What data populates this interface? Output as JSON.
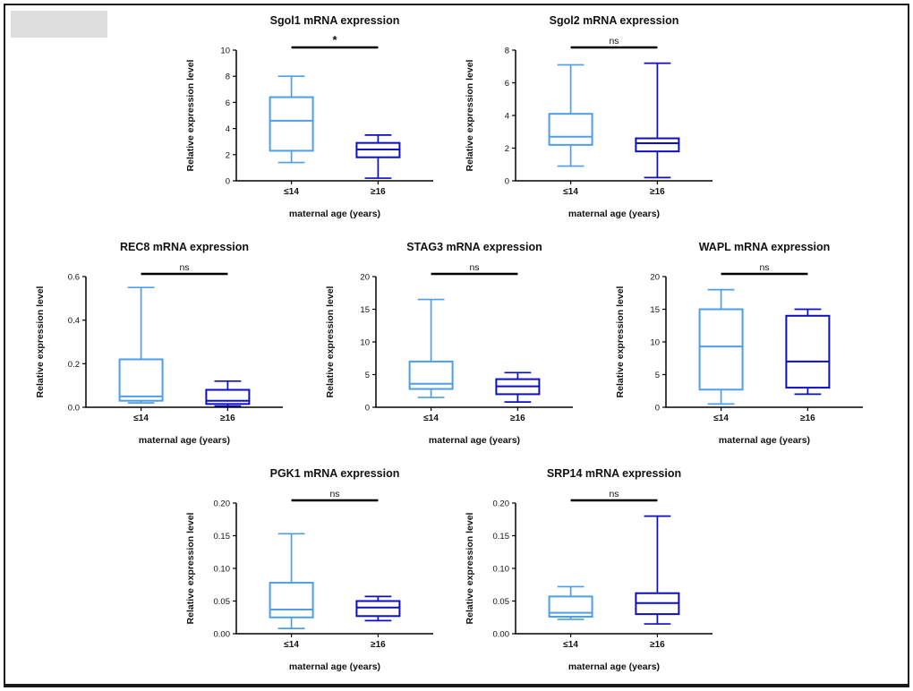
{
  "figure": {
    "groups": [
      {
        "label": "≤14",
        "color": "#4D9EEB"
      },
      {
        "label": "≥16",
        "color": "#0E0EC2"
      }
    ],
    "axis_color": "#000000",
    "significance_color": "#000000"
  },
  "chart_data": [
    {
      "type": "box",
      "title": "Sgol1 mRNA expression",
      "ylabel": "Relative expression level",
      "xlabel": "maternal age (years)",
      "significance": "*",
      "ylim": [
        0,
        10
      ],
      "yticks": [
        0,
        2,
        4,
        6,
        8,
        10
      ],
      "ytick_labels": [
        "0",
        "2",
        "4",
        "6",
        "8",
        "10"
      ],
      "categories": [
        "≤14",
        "≥16"
      ],
      "series": [
        {
          "name": "≤14",
          "whisker_low": 1.4,
          "q1": 2.3,
          "median": 4.6,
          "q3": 6.4,
          "whisker_high": 8.0
        },
        {
          "name": "≥16",
          "whisker_low": 0.2,
          "q1": 1.8,
          "median": 2.4,
          "q3": 2.9,
          "whisker_high": 3.5
        }
      ]
    },
    {
      "type": "box",
      "title": "Sgol2 mRNA expression",
      "ylabel": "Relative expression level",
      "xlabel": "maternal age (years)",
      "significance": "ns",
      "ylim": [
        0,
        8
      ],
      "yticks": [
        0,
        2,
        4,
        6,
        8
      ],
      "ytick_labels": [
        "0",
        "2",
        "4",
        "6",
        "8"
      ],
      "categories": [
        "≤14",
        "≥16"
      ],
      "series": [
        {
          "name": "≤14",
          "whisker_low": 0.9,
          "q1": 2.2,
          "median": 2.7,
          "q3": 4.1,
          "whisker_high": 7.1
        },
        {
          "name": "≥16",
          "whisker_low": 0.2,
          "q1": 1.8,
          "median": 2.3,
          "q3": 2.6,
          "whisker_high": 7.2
        }
      ]
    },
    {
      "type": "box",
      "title": "REC8 mRNA expression",
      "ylabel": "Relative expression level",
      "xlabel": "maternal age (years)",
      "significance": "ns",
      "ylim": [
        0,
        0.6
      ],
      "yticks": [
        0,
        0.2,
        0.4,
        0.6
      ],
      "ytick_labels": [
        "0.0",
        "0.2",
        "0.4",
        "0.6"
      ],
      "categories": [
        "≤14",
        "≥16"
      ],
      "series": [
        {
          "name": "≤14",
          "whisker_low": 0.02,
          "q1": 0.03,
          "median": 0.05,
          "q3": 0.22,
          "whisker_high": 0.55
        },
        {
          "name": "≥16",
          "whisker_low": 0.005,
          "q1": 0.015,
          "median": 0.03,
          "q3": 0.08,
          "whisker_high": 0.12
        }
      ]
    },
    {
      "type": "box",
      "title": "STAG3 mRNA expression",
      "ylabel": "Relative expression level",
      "xlabel": "maternal age (years)",
      "significance": "ns",
      "ylim": [
        0,
        20
      ],
      "yticks": [
        0,
        5,
        10,
        15,
        20
      ],
      "ytick_labels": [
        "0",
        "5",
        "10",
        "15",
        "20"
      ],
      "categories": [
        "≤14",
        "≥16"
      ],
      "series": [
        {
          "name": "≤14",
          "whisker_low": 1.5,
          "q1": 2.8,
          "median": 3.6,
          "q3": 7.0,
          "whisker_high": 16.5
        },
        {
          "name": "≥16",
          "whisker_low": 0.8,
          "q1": 2.0,
          "median": 3.2,
          "q3": 4.3,
          "whisker_high": 5.3
        }
      ]
    },
    {
      "type": "box",
      "title": "WAPL mRNA expression",
      "ylabel": "Relative expression level",
      "xlabel": "maternal age (years)",
      "significance": "ns",
      "ylim": [
        0,
        20
      ],
      "yticks": [
        0,
        5,
        10,
        15,
        20
      ],
      "ytick_labels": [
        "0",
        "5",
        "10",
        "15",
        "20"
      ],
      "categories": [
        "≤14",
        "≥16"
      ],
      "series": [
        {
          "name": "≤14",
          "whisker_low": 0.5,
          "q1": 2.7,
          "median": 9.3,
          "q3": 15.0,
          "whisker_high": 18.0
        },
        {
          "name": "≥16",
          "whisker_low": 2.0,
          "q1": 3.0,
          "median": 7.0,
          "q3": 14.0,
          "whisker_high": 15.0
        }
      ]
    },
    {
      "type": "box",
      "title": "PGK1 mRNA expression",
      "ylabel": "Relative expression level",
      "xlabel": "maternal age (years)",
      "significance": "ns",
      "ylim": [
        0,
        0.2
      ],
      "yticks": [
        0,
        0.05,
        0.1,
        0.15,
        0.2
      ],
      "ytick_labels": [
        "0.00",
        "0.05",
        "0.10",
        "0.15",
        "0.20"
      ],
      "categories": [
        "≤14",
        "≥16"
      ],
      "series": [
        {
          "name": "≤14",
          "whisker_low": 0.008,
          "q1": 0.025,
          "median": 0.037,
          "q3": 0.078,
          "whisker_high": 0.153
        },
        {
          "name": "≥16",
          "whisker_low": 0.02,
          "q1": 0.027,
          "median": 0.04,
          "q3": 0.05,
          "whisker_high": 0.057
        }
      ]
    },
    {
      "type": "box",
      "title": "SRP14 mRNA expression",
      "ylabel": "Relative expression level",
      "xlabel": "maternal age (years)",
      "significance": "ns",
      "ylim": [
        0,
        0.2
      ],
      "yticks": [
        0,
        0.05,
        0.1,
        0.15,
        0.2
      ],
      "ytick_labels": [
        "0.00",
        "0.05",
        "0.10",
        "0.15",
        "0.20"
      ],
      "categories": [
        "≤14",
        "≥16"
      ],
      "series": [
        {
          "name": "≤14",
          "whisker_low": 0.022,
          "q1": 0.026,
          "median": 0.032,
          "q3": 0.057,
          "whisker_high": 0.072
        },
        {
          "name": "≥16",
          "whisker_low": 0.015,
          "q1": 0.03,
          "median": 0.047,
          "q3": 0.062,
          "whisker_high": 0.18
        }
      ]
    }
  ]
}
